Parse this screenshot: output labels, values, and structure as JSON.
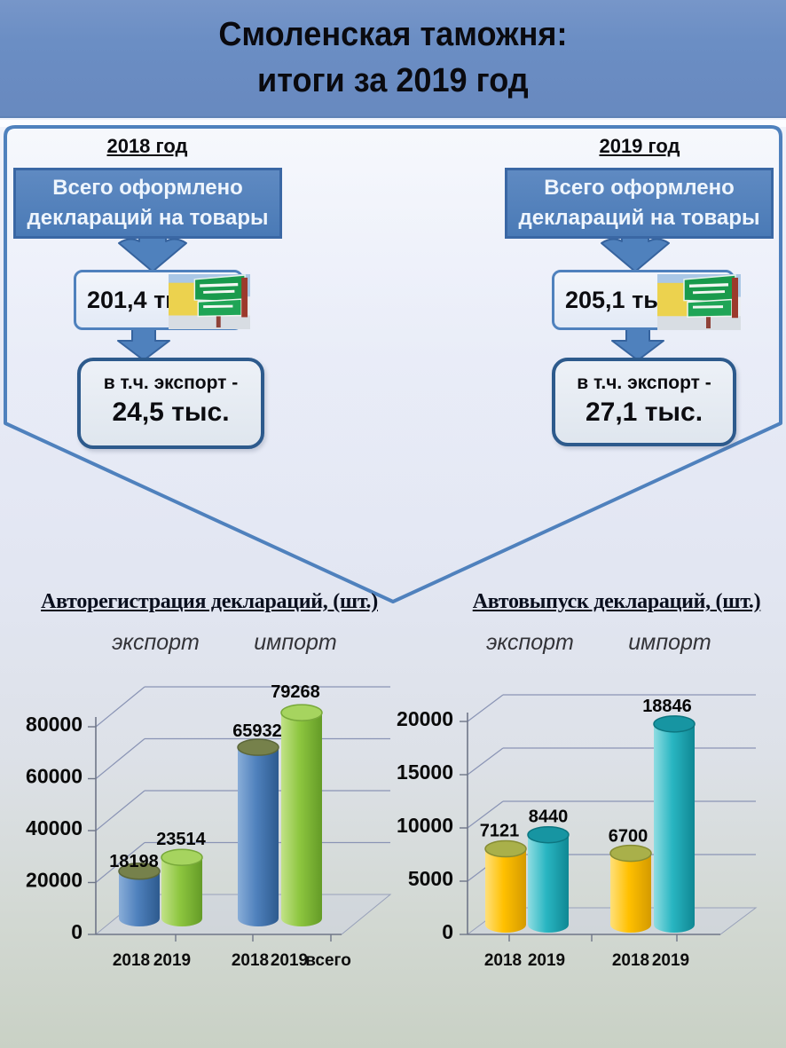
{
  "slide": {
    "title_line1": "Смоленская таможня:",
    "title_line2": "итоги за 2019 год"
  },
  "flow": {
    "left": {
      "year_label": "2018 год",
      "box_line1": "Всего оформлено",
      "box_line2": "деклараций на товары",
      "total_value": "201,4 тыс.",
      "export_label": "в т.ч. экспорт -",
      "export_value": "24,5 тыс."
    },
    "right": {
      "year_label": "2019 год",
      "box_line1": "Всего оформлено",
      "box_line2": "деклараций на товары",
      "total_value": "205,1 тыс.",
      "export_label": "в т.ч. экспорт -",
      "export_value": "27,1 тыс."
    }
  },
  "icons": {
    "sign_photo": "customs-control-zone-sign"
  },
  "accent_colors": {
    "header_blue": "#6b8ec4",
    "panel_blue": "#4f81bd",
    "dark_border": "#2d5a8c",
    "bar_blue": "#4f81bd",
    "bar_green": "#8dc63f",
    "bar_gold": "#ffc000",
    "bar_teal": "#29b6c2"
  },
  "chart_data": [
    {
      "type": "bar",
      "style": "3d-cylinder",
      "title": "Авторегистрация деклараций, (шт.)",
      "group_labels": [
        "экспорт",
        "импорт"
      ],
      "x_tick_labels": [
        "2018",
        "2019",
        "2018",
        "2019",
        "всего"
      ],
      "yticks": [
        0,
        20000,
        40000,
        60000,
        80000
      ],
      "ylim": [
        0,
        80000
      ],
      "grid": true,
      "legend_position": "none",
      "series": [
        {
          "name": "2018",
          "color": "#4f81bd",
          "values": [
            18198,
            65932
          ]
        },
        {
          "name": "2019",
          "color": "#8dc63f",
          "values": [
            23514,
            79268
          ]
        }
      ],
      "bars": [
        {
          "group": "экспорт",
          "x_label": "2018",
          "value": 18198,
          "data_label": "18198",
          "color_key": "blue"
        },
        {
          "group": "экспорт",
          "x_label": "2019",
          "value": 23514,
          "data_label": "23514",
          "color_key": "green"
        },
        {
          "group": "импорт",
          "x_label": "2018",
          "value": 65932,
          "data_label": "65932",
          "color_key": "blue"
        },
        {
          "group": "импорт",
          "x_label": "2019",
          "value": 79268,
          "data_label": "79268",
          "color_key": "green"
        }
      ]
    },
    {
      "type": "bar",
      "style": "3d-cylinder",
      "title": "Автовыпуск деклараций, (шт.)",
      "group_labels": [
        "экспорт",
        "импорт"
      ],
      "x_tick_labels": [
        "2018",
        "2019",
        "2018",
        "2019"
      ],
      "yticks": [
        0,
        5000,
        10000,
        15000,
        20000
      ],
      "ylim": [
        0,
        20000
      ],
      "grid": true,
      "legend_position": "none",
      "series": [
        {
          "name": "2018",
          "color": "#ffc000",
          "values": [
            7121,
            6700
          ]
        },
        {
          "name": "2019",
          "color": "#29b6c2",
          "values": [
            8440,
            18846
          ]
        }
      ],
      "bars": [
        {
          "group": "экспорт",
          "x_label": "2018",
          "value": 7121,
          "data_label": "7121",
          "color_key": "gold"
        },
        {
          "group": "экспорт",
          "x_label": "2019",
          "value": 8440,
          "data_label": "8440",
          "color_key": "teal"
        },
        {
          "group": "импорт",
          "x_label": "2018",
          "value": 6700,
          "data_label": "6700",
          "color_key": "gold"
        },
        {
          "group": "импорт",
          "x_label": "2019",
          "value": 18846,
          "data_label": "18846",
          "color_key": "teal"
        }
      ]
    }
  ]
}
